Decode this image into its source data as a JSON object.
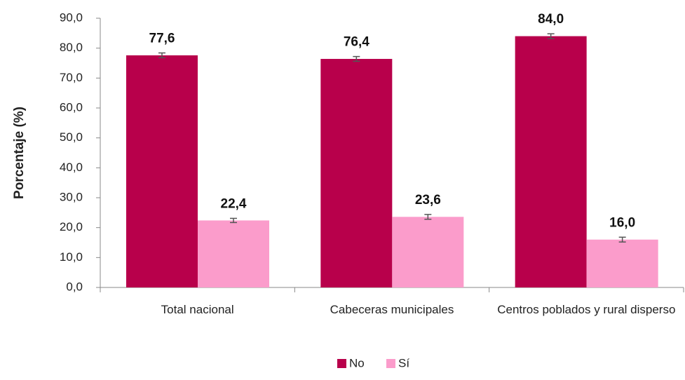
{
  "chart_data": {
    "type": "bar",
    "y_label": "Porcentaje (%)",
    "categories": [
      "Total nacional",
      "Cabeceras municipales",
      "Centros poblados y rural disperso"
    ],
    "series": [
      {
        "name": "No",
        "color": "#b8004b",
        "values": [
          77.6,
          76.4,
          84.0
        ],
        "value_labels": [
          "77,6",
          "76,4",
          "84,0"
        ],
        "errors": [
          0.8,
          0.8,
          0.8
        ]
      },
      {
        "name": "Sí",
        "color": "#fb9ccb",
        "values": [
          22.4,
          23.6,
          16.0
        ],
        "value_labels": [
          "22,4",
          "23,6",
          "16,0"
        ],
        "errors": [
          0.7,
          0.8,
          0.8
        ]
      }
    ],
    "ylim": [
      0,
      90
    ],
    "yticks": [
      {
        "value": 0,
        "label": "0,0"
      },
      {
        "value": 10,
        "label": "10,0"
      },
      {
        "value": 20,
        "label": "20,0"
      },
      {
        "value": 30,
        "label": "30,0"
      },
      {
        "value": 40,
        "label": "40,0"
      },
      {
        "value": 50,
        "label": "50,0"
      },
      {
        "value": 60,
        "label": "60,0"
      },
      {
        "value": 70,
        "label": "70,0"
      },
      {
        "value": 80,
        "label": "80,0"
      },
      {
        "value": 90,
        "label": "90,0"
      }
    ],
    "legend": "bottom"
  }
}
